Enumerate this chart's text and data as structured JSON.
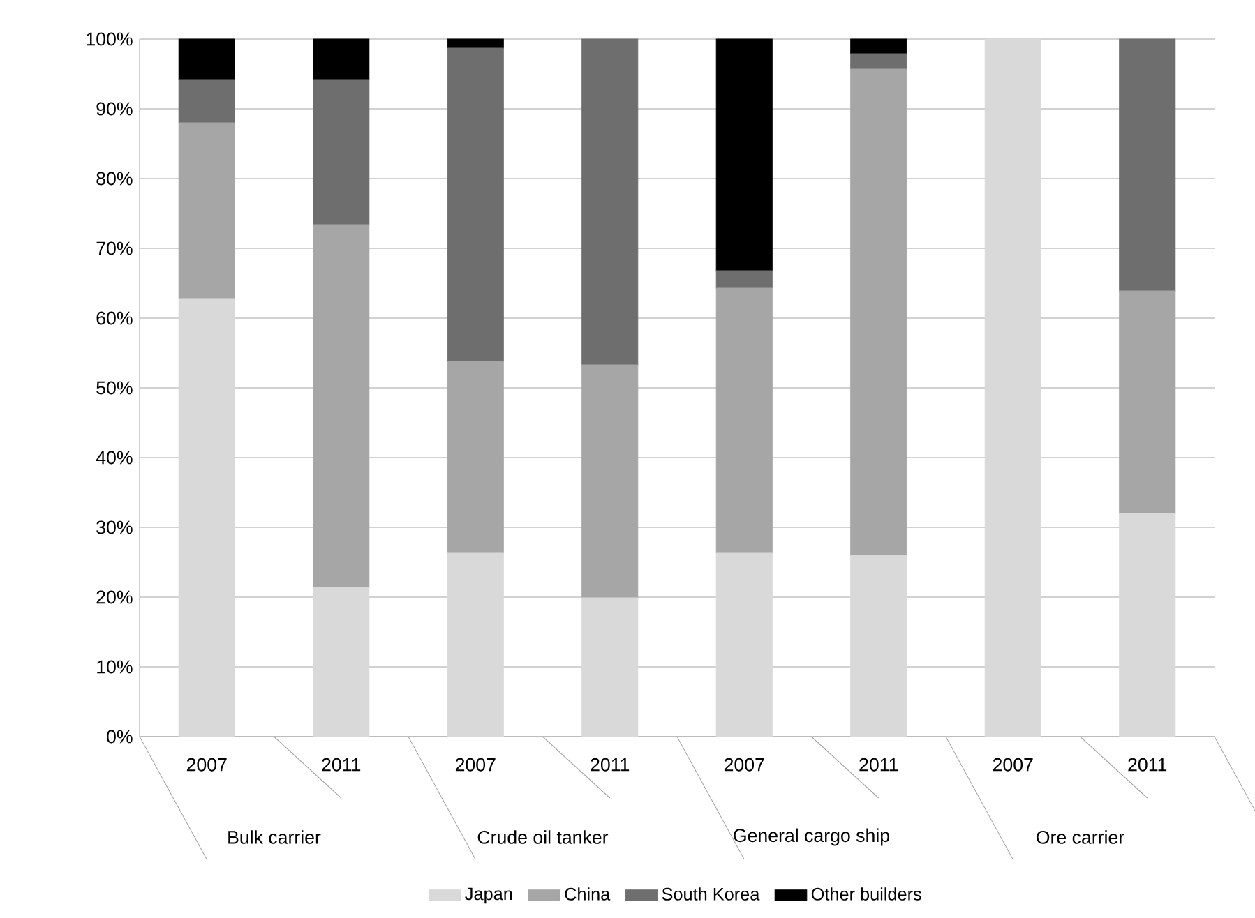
{
  "chart_data": {
    "type": "bar",
    "stacked": true,
    "categories": [
      "2007",
      "2011",
      "2007",
      "2011",
      "2007",
      "2011",
      "2007",
      "2011"
    ],
    "annotations": [
      "Bulk carrier",
      "Crude oil tanker",
      "General cargo ship",
      "Ore carrier"
    ],
    "series": [
      {
        "name": "Japan",
        "color": "#d9d9d9",
        "values": [
          62.8,
          21.4,
          26.3,
          19.9,
          26.3,
          26.0,
          100,
          32.0
        ]
      },
      {
        "name": "China",
        "color": "#a6a6a6",
        "values": [
          25.2,
          52.0,
          27.5,
          33.4,
          38.0,
          69.7,
          0,
          31.9
        ]
      },
      {
        "name": "South Korea",
        "color": "#6e6e6e",
        "values": [
          6.2,
          20.8,
          44.9,
          46.7,
          2.5,
          2.2,
          0,
          36.1
        ]
      },
      {
        "name": "Other builders",
        "color": "#000000",
        "values": [
          5.8,
          5.8,
          1.3,
          0,
          33.2,
          2.1,
          0,
          0
        ]
      }
    ],
    "ylim": [
      0,
      100
    ],
    "yticks": [
      {
        "value": 0,
        "label": "0%"
      },
      {
        "value": 10,
        "label": "10%"
      },
      {
        "value": 20,
        "label": "20%"
      },
      {
        "value": 30,
        "label": "30%"
      },
      {
        "value": 40,
        "label": "40%"
      },
      {
        "value": 50,
        "label": "50%"
      },
      {
        "value": 60,
        "label": "60%"
      },
      {
        "value": 70,
        "label": "70%"
      },
      {
        "value": 80,
        "label": "80%"
      },
      {
        "value": 90,
        "label": "90%"
      },
      {
        "value": 100,
        "label": "100%"
      }
    ],
    "grid": "y",
    "legend": "bottom"
  }
}
